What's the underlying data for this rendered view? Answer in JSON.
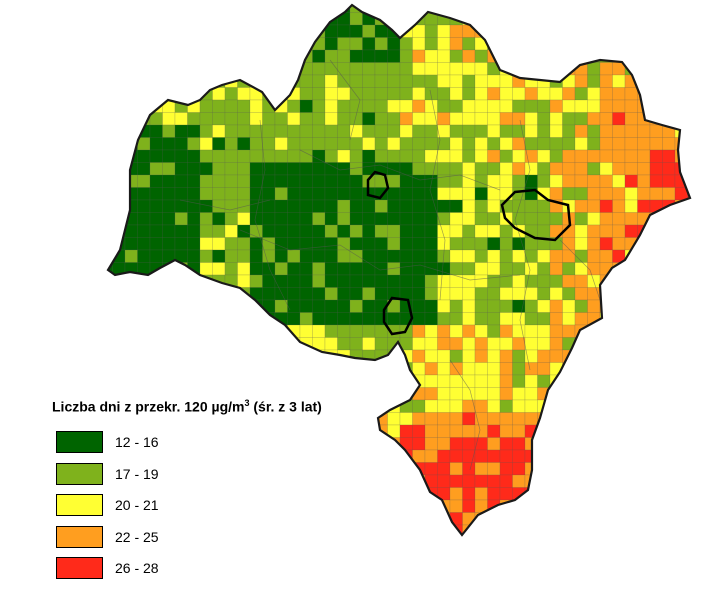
{
  "map": {
    "legend": {
      "title_main": "Liczba dni z przekr. 120 µg/m",
      "title_sup": "3",
      "title_tail": " (śr. z 3 lat)",
      "items": [
        {
          "label": "12 - 16",
          "color": "#006400"
        },
        {
          "label": "17 - 19",
          "color": "#7FB21C"
        },
        {
          "label": "20 - 21",
          "color": "#FFFF33"
        },
        {
          "label": "22 - 25",
          "color": "#FF9E1F"
        },
        {
          "label": "26 - 28",
          "color": "#FF2A1A"
        }
      ]
    }
  }
}
